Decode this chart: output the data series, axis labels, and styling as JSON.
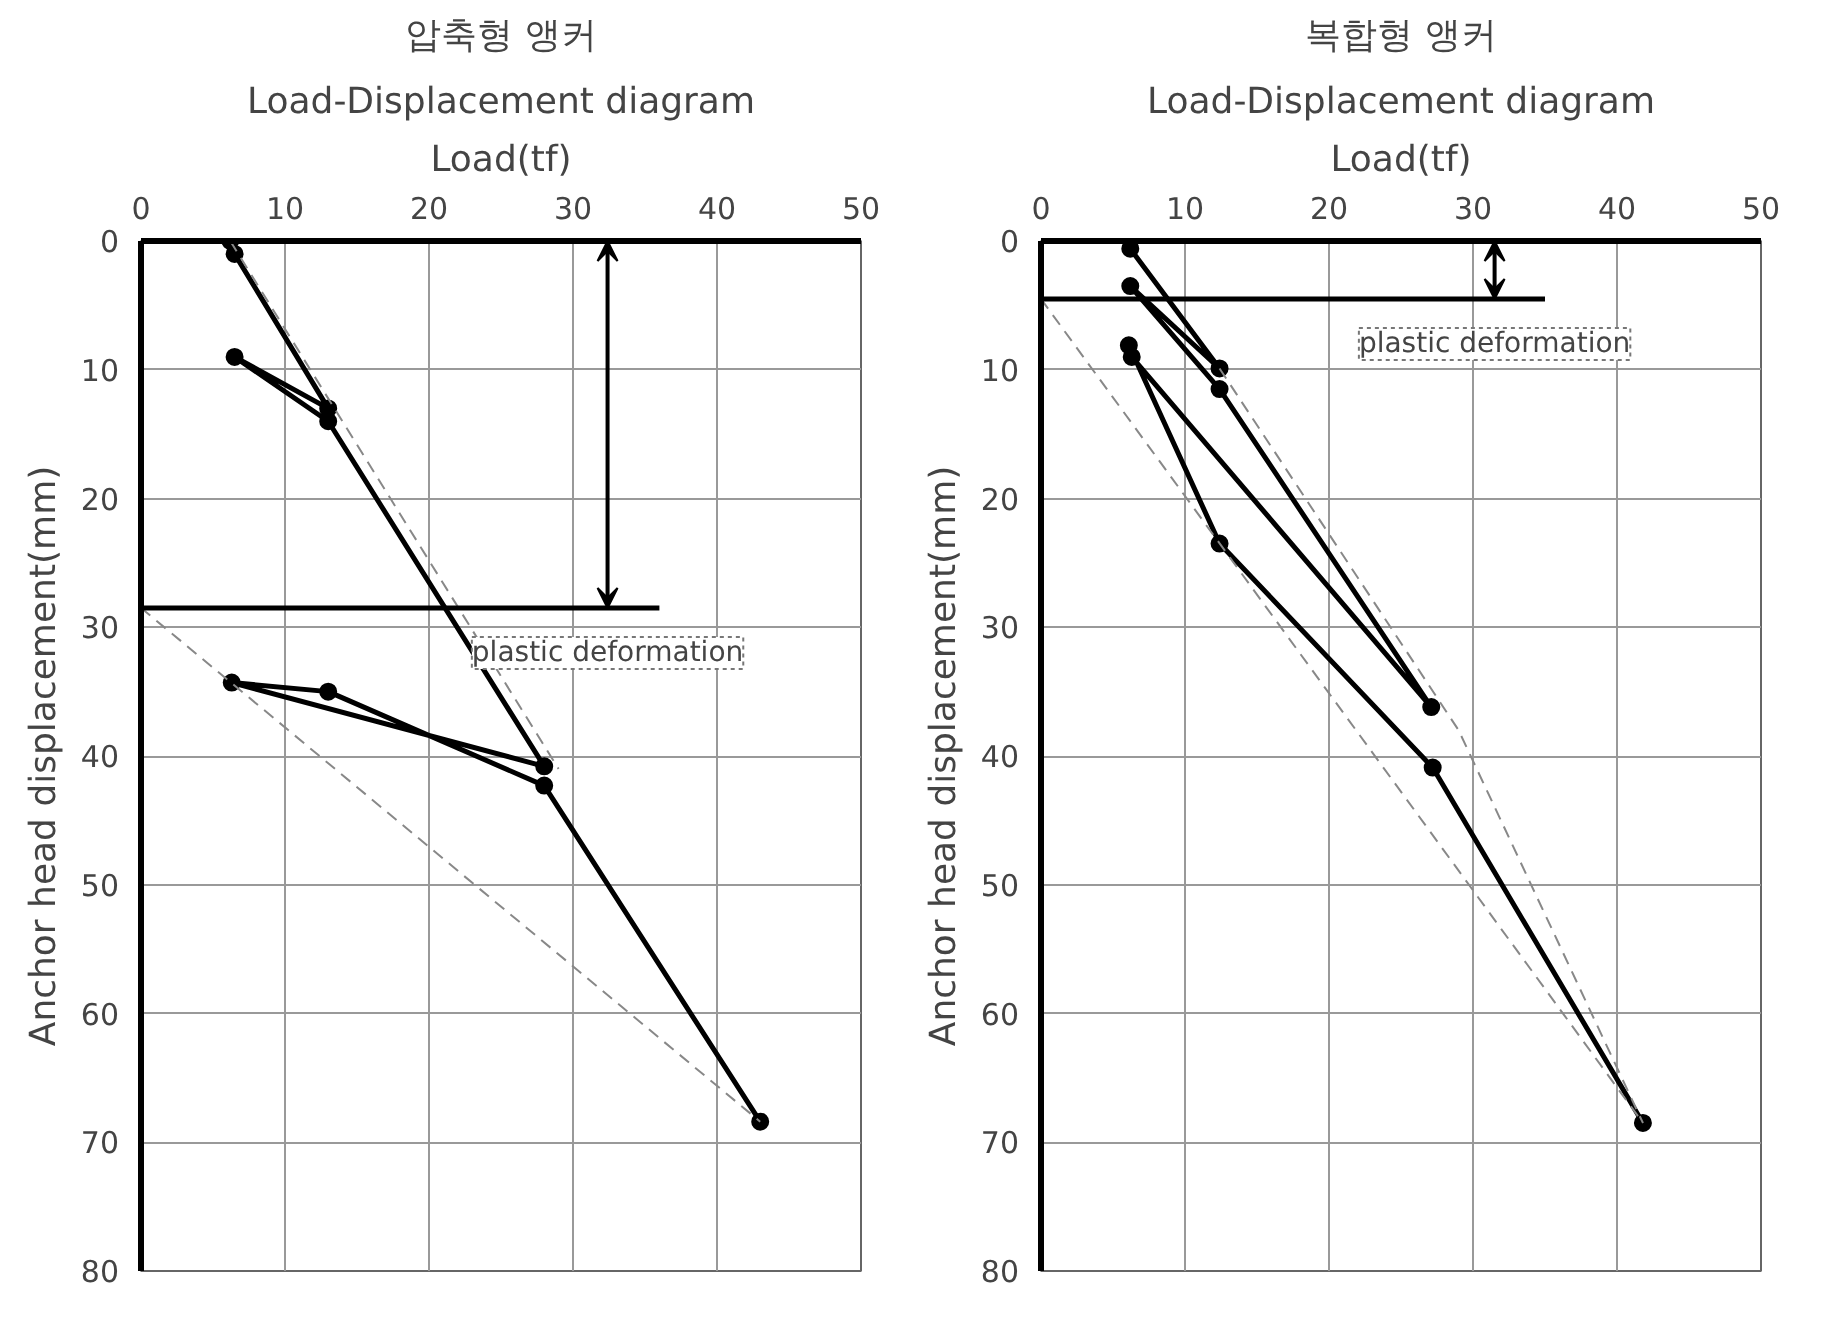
{
  "chart_data": [
    {
      "type": "line",
      "title": "압축형 앵커",
      "subtitle": "Load-Displacement diagram",
      "xlabel": "Load(tf)",
      "ylabel": "Anchor head displacement(mm)",
      "xlim": [
        0,
        50
      ],
      "ylim": [
        80,
        0
      ],
      "xticks": [
        0,
        10,
        20,
        30,
        40,
        50
      ],
      "yticks": [
        0,
        10,
        20,
        30,
        40,
        50,
        60,
        70,
        80
      ],
      "grid": true,
      "series": [
        {
          "color": "#000000",
          "marker": "circle",
          "line_style": "solid",
          "x": [
            6.2,
            6.5,
            13,
            6.5,
            13,
            28,
            6.3,
            13,
            28,
            43
          ],
          "values": [
            0,
            1,
            13,
            9,
            14,
            40.8,
            34.3,
            35,
            42.3,
            68.4
          ]
        },
        {
          "color": "#888888",
          "type": "line",
          "marker": "none",
          "line_style": "dashed",
          "x": [
            6.2,
            29
          ],
          "values": [
            0,
            41
          ]
        },
        {
          "color": "#888888",
          "type": "line",
          "marker": "none",
          "line_style": "dashed",
          "x": [
            0,
            43
          ],
          "values": [
            28.5,
            68.4
          ]
        },
        {
          "color": "#000000",
          "type": "line",
          "marker": "none",
          "line_style": "solid",
          "x": [
            0,
            36
          ],
          "values": [
            28.5,
            28.5
          ]
        }
      ],
      "annotations": [
        "plastic deformation"
      ]
    },
    {
      "type": "line",
      "title": "복합형 앵커",
      "subtitle": "Load-Displacement diagram",
      "xlabel": "Load(tf)",
      "ylabel": "Anchor head displacement(mm)",
      "xlim": [
        0,
        50
      ],
      "ylim": [
        80,
        0
      ],
      "xticks": [
        0,
        10,
        20,
        30,
        40,
        50
      ],
      "yticks": [
        0,
        10,
        20,
        30,
        40,
        50,
        60,
        70,
        80
      ],
      "grid": true,
      "series": [
        {
          "color": "#000000",
          "marker": "circle",
          "line_style": "solid",
          "x": [
            6.2,
            12.4,
            6.2,
            12.4,
            27.1,
            6.3,
            6.1,
            12.4,
            27.2,
            41.8
          ],
          "values": [
            0.6,
            9.9,
            3.5,
            11.5,
            36.2,
            9.0,
            8.1,
            23.5,
            40.9,
            68.5
          ]
        },
        {
          "color": "#888888",
          "type": "line",
          "marker": "none",
          "line_style": "dashed",
          "x": [
            0,
            41.8
          ],
          "values": [
            4.5,
            68.5
          ]
        },
        {
          "color": "#888888",
          "type": "line",
          "marker": "none",
          "line_style": "dashed",
          "x": [
            12.4,
            29,
            41.8
          ],
          "values": [
            9.9,
            38,
            68.5
          ]
        },
        {
          "color": "#000000",
          "type": "line",
          "marker": "none",
          "line_style": "solid",
          "x": [
            0,
            35
          ],
          "values": [
            4.5,
            4.5
          ]
        }
      ],
      "annotations": [
        "plastic deformation"
      ]
    }
  ]
}
